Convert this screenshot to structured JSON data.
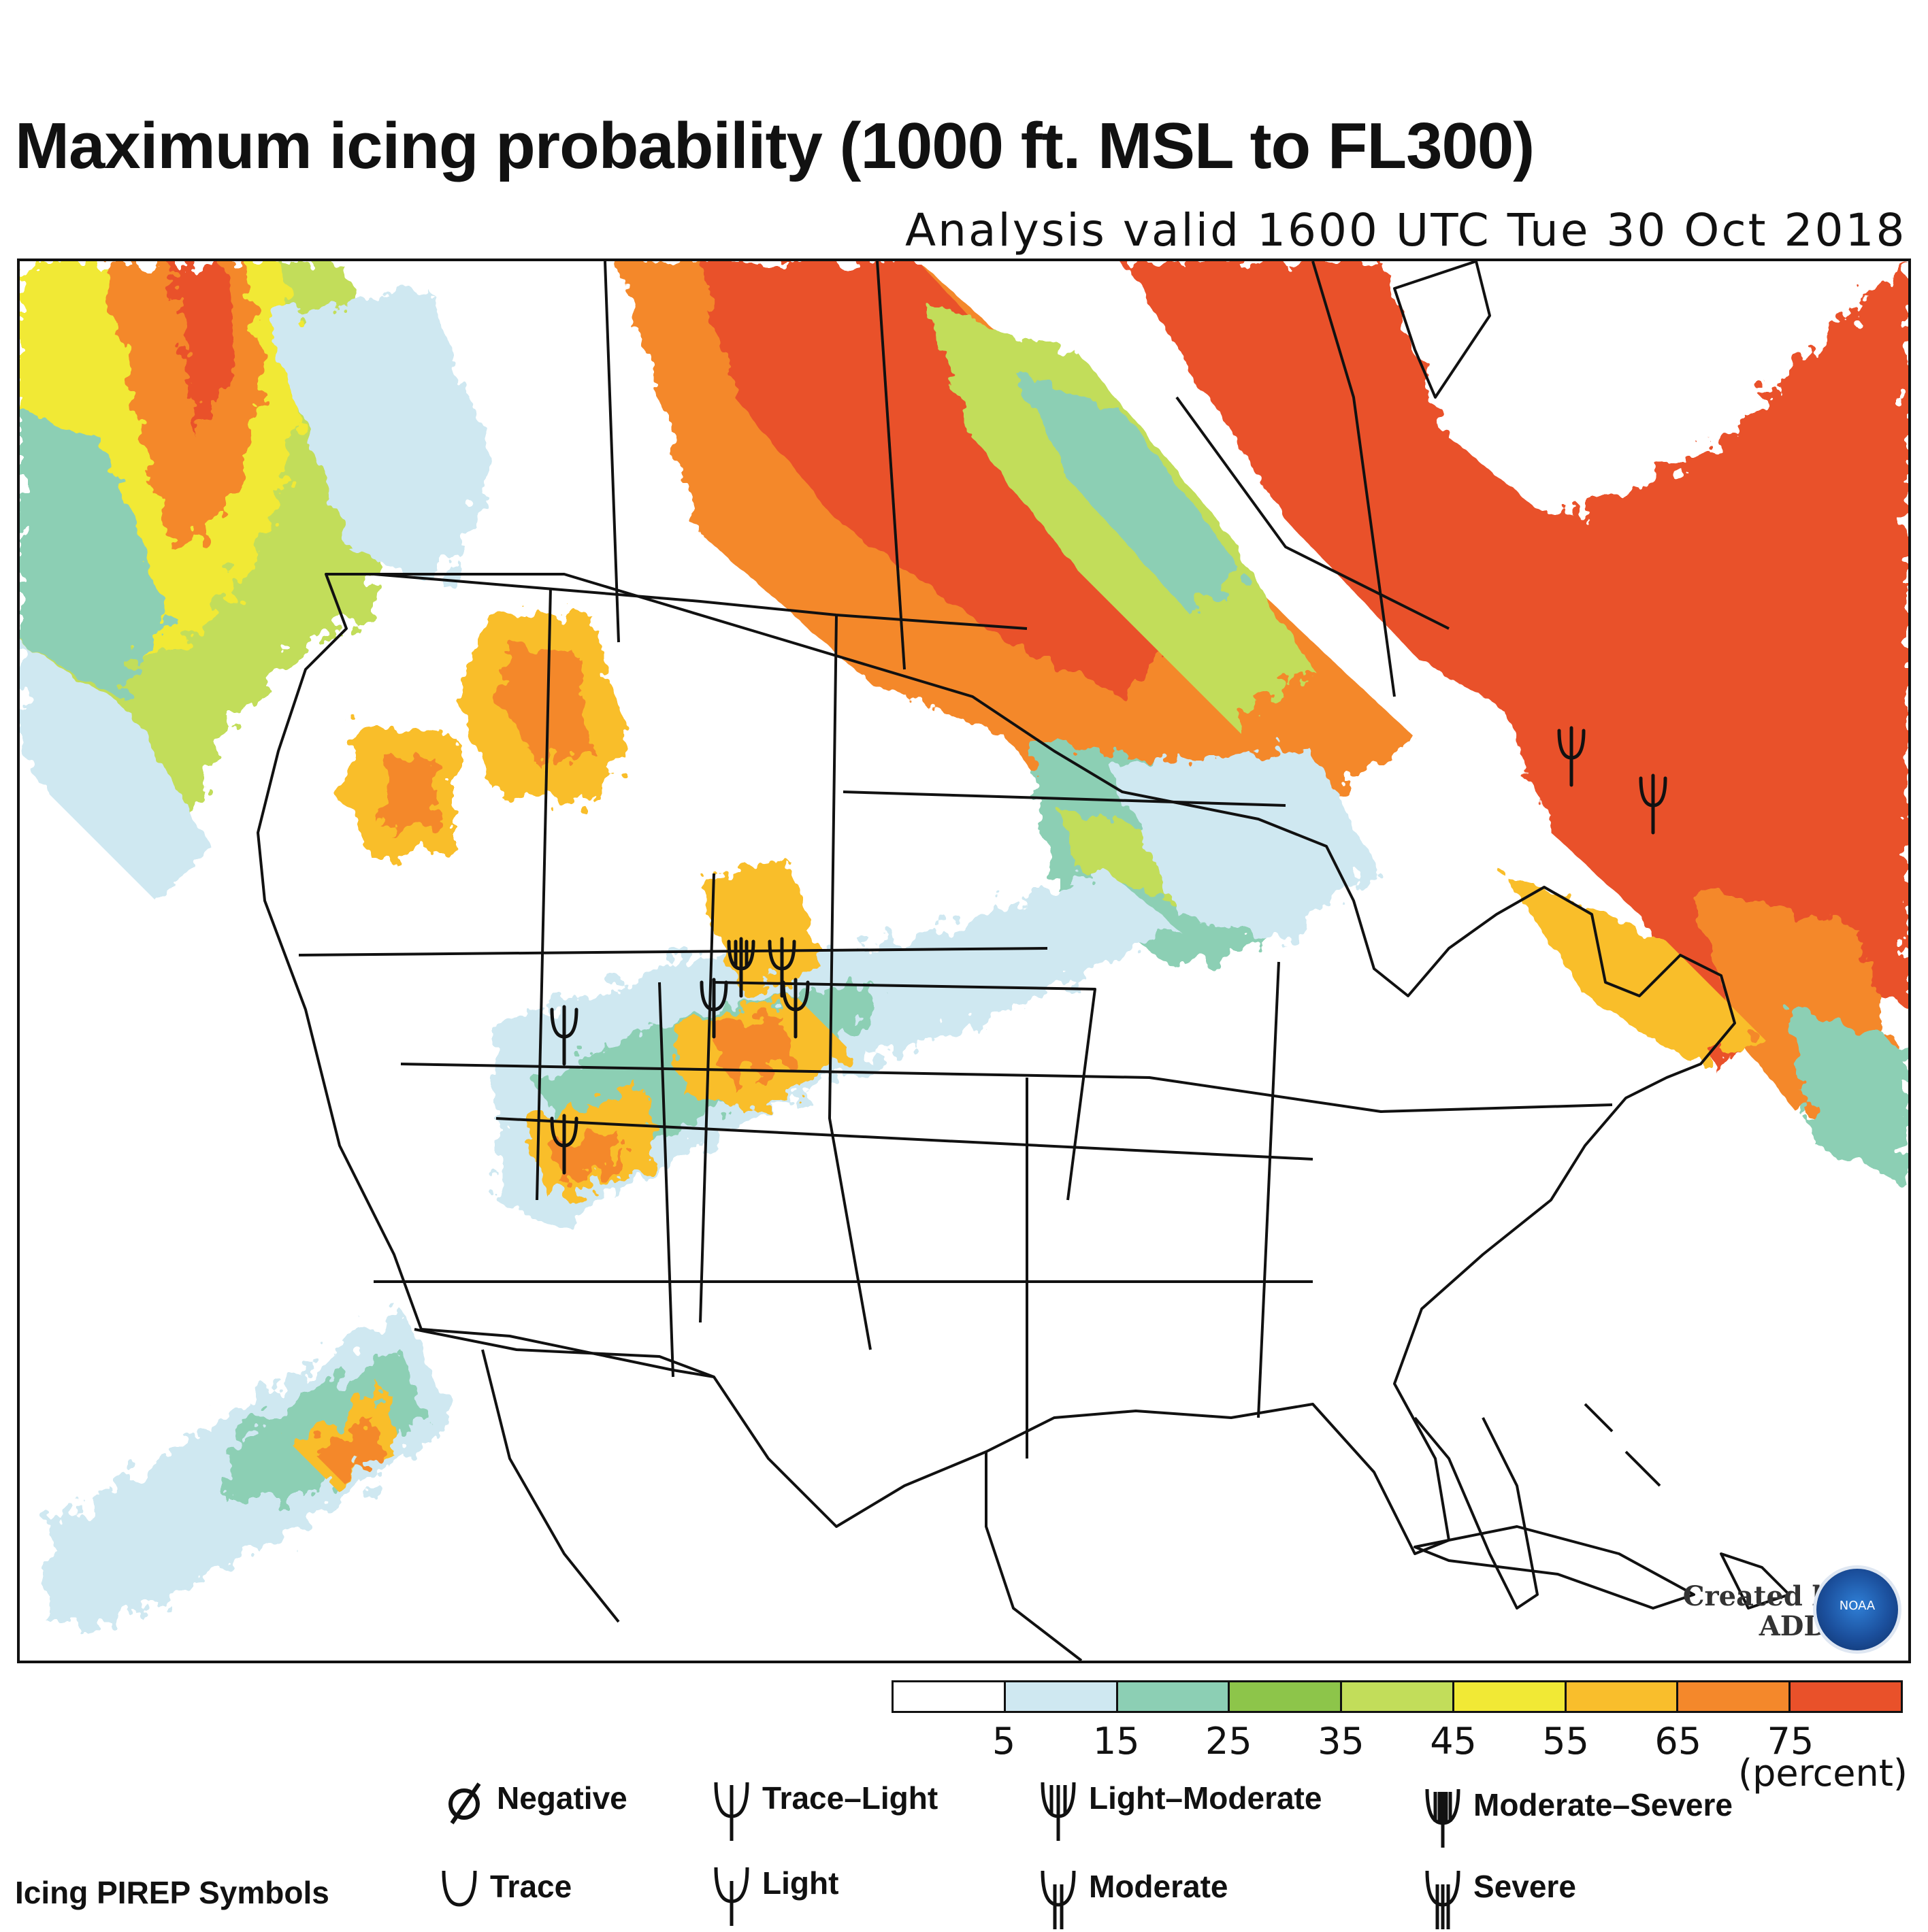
{
  "title": "Maximum icing probability (1000 ft. MSL to FL300)",
  "subtitle": "Analysis valid 1600 UTC Tue 30 Oct 2018",
  "credit": {
    "line1": "Created by",
    "line2": "ADDS",
    "logo_icon": "noaa-logo"
  },
  "colorbar": {
    "colors": [
      "#ffffff",
      "#cfe8f1",
      "#8ccfb4",
      "#8dc54a",
      "#c2dd5a",
      "#f1e935",
      "#f9be2c",
      "#f4882b",
      "#e9512a"
    ],
    "ticks": [
      "5",
      "15",
      "25",
      "35",
      "45",
      "55",
      "65",
      "75"
    ],
    "unit": "(percent)"
  },
  "pirep_legend": {
    "title": "Icing PIREP Symbols",
    "row1": [
      {
        "label": "Negative",
        "icon": "negative-icon"
      },
      {
        "label": "Trace–Light",
        "icon": "trace-light-icon"
      },
      {
        "label": "Light–Moderate",
        "icon": "light-moderate-icon"
      },
      {
        "label": "Moderate–Severe",
        "icon": "moderate-severe-icon"
      }
    ],
    "row2": [
      {
        "label": "Trace",
        "icon": "trace-icon"
      },
      {
        "label": "Light",
        "icon": "light-icon"
      },
      {
        "label": "Moderate",
        "icon": "moderate-icon"
      },
      {
        "label": "Severe",
        "icon": "severe-icon"
      }
    ]
  }
}
